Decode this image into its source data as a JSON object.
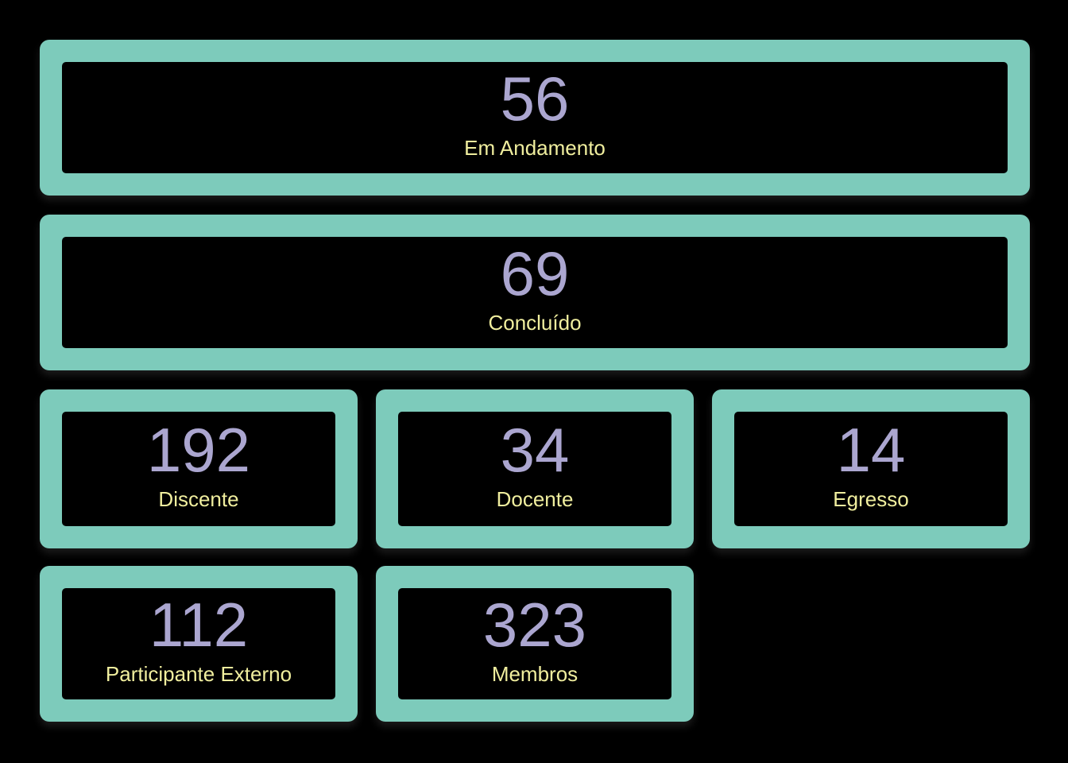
{
  "page": {
    "background": "#000000"
  },
  "theme": {
    "page_background": "#000000",
    "card_border_color": "#7DCBBB",
    "card_background": "#000000",
    "value_color": "#ABA6D0",
    "label_color": "#F0EE9E"
  },
  "cards": [
    {
      "value": "56",
      "label": "Em Andamento"
    },
    {
      "value": "69",
      "label": "Concluído"
    },
    {
      "value": "192",
      "label": "Discente"
    },
    {
      "value": "34",
      "label": "Docente"
    },
    {
      "value": "14",
      "label": "Egresso"
    },
    {
      "value": "112",
      "label": "Participante Externo"
    },
    {
      "value": "323",
      "label": "Membros"
    }
  ]
}
